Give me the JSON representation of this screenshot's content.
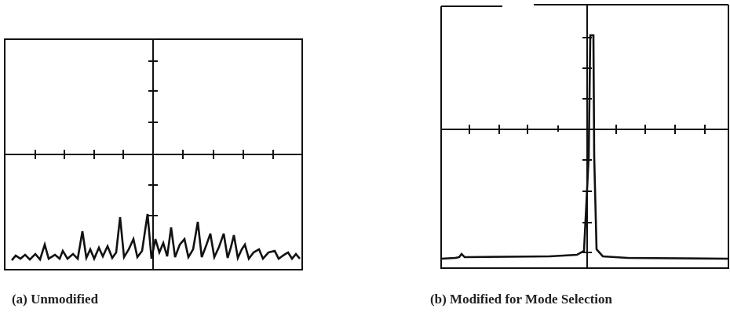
{
  "figure": {
    "panels": [
      {
        "caption": "(a)  Unmodified"
      },
      {
        "caption": "(b)  Modified for Mode Selection"
      }
    ]
  }
}
